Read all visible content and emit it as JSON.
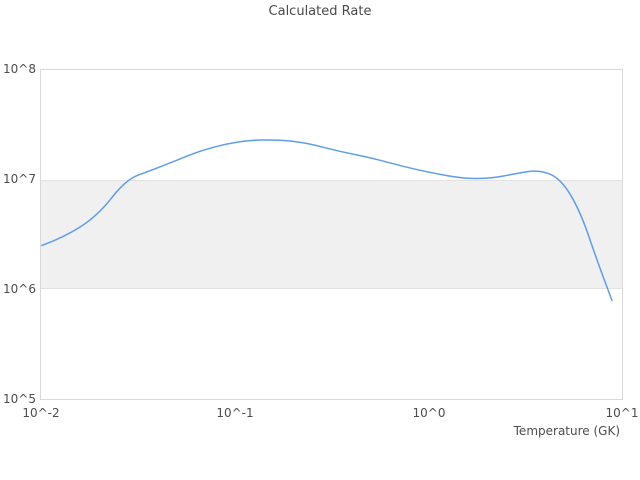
{
  "title": "Calculated Rate",
  "colors": {
    "line": "#5c9ded",
    "band_fill": "#f0f0f0",
    "grid_line": "#e2e2e2",
    "frame": "#d9d9d9",
    "text": "#4d4d4d",
    "background": "#ffffff"
  },
  "chart_data": {
    "type": "line",
    "title": "Calculated Rate",
    "xlabel": "Temperature (GK)",
    "ylabel": "",
    "x_scale": "log",
    "y_scale": "log",
    "xlim": [
      0.01,
      10
    ],
    "ylim": [
      100000,
      100000000
    ],
    "x_tick_labels": [
      "10^-2",
      "10^-1",
      "10^0",
      "10^1"
    ],
    "y_tick_labels": [
      "10^5",
      "10^6",
      "10^7",
      "10^8"
    ],
    "grid": "horizontal-decade-band",
    "legend_position": "none",
    "shaded_band_y": [
      1000000,
      10000000
    ],
    "series": [
      {
        "name": "Calculated Rate",
        "points": [
          [
            0.0101,
            2510000
          ],
          [
            0.0131,
            2970000
          ],
          [
            0.0197,
            4710000
          ],
          [
            0.0274,
            10000000
          ],
          [
            0.0369,
            12100000
          ],
          [
            0.0497,
            14900000
          ],
          [
            0.0668,
            18400000
          ],
          [
            0.0899,
            21200000
          ],
          [
            0.121,
            22900000
          ],
          [
            0.153,
            23100000
          ],
          [
            0.194,
            22600000
          ],
          [
            0.246,
            21200000
          ],
          [
            0.352,
            18000000
          ],
          [
            0.502,
            15900000
          ],
          [
            0.717,
            13400000
          ],
          [
            1.02,
            11600000
          ],
          [
            1.55,
            10200000
          ],
          [
            2.09,
            10300000
          ],
          [
            2.81,
            11300000
          ],
          [
            3.69,
            12300000
          ],
          [
            4.79,
            10400000
          ],
          [
            6.07,
            5220000
          ],
          [
            7.43,
            1840000
          ],
          [
            8.88,
            790000
          ]
        ]
      }
    ]
  }
}
